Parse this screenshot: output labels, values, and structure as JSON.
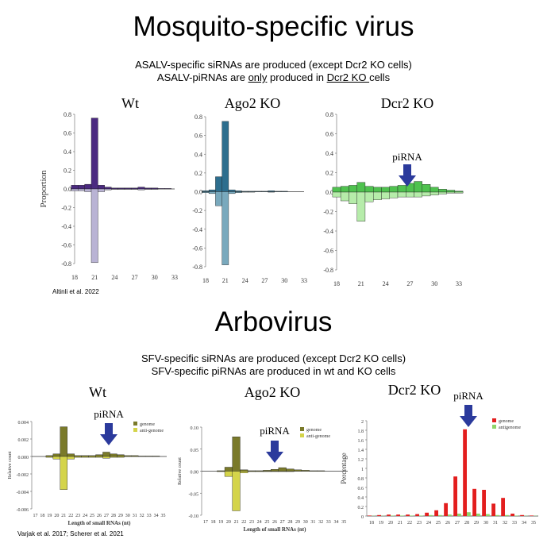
{
  "sections": {
    "top": {
      "title": "Mosquito-specific virus",
      "subtitle_line1": "ASALV-specific siRNAs are produced (except Dcr2 KO cells)",
      "subtitle_line2_pre": "ASALV-piRNAs are ",
      "subtitle_line2_u1": "only",
      "subtitle_line2_mid": " produced in ",
      "subtitle_line2_u2": "Dcr2 KO ",
      "subtitle_line2_post": "cells",
      "citation": "Altinli et al. 2022"
    },
    "bottom": {
      "title": "Arbovirus",
      "subtitle_line1": "SFV-specific siRNAs are produced (except Dcr2 KO cells)",
      "subtitle_line2": "SFV-specific piRNAs are produced in wt and KO cells",
      "citation": "Varjak et al. 2017; Scherer et al. 2021"
    }
  },
  "colors": {
    "wt_top_dark": "#4b2a80",
    "wt_top_light": "#b9b3d4",
    "ago2_top_dark": "#2d6e8e",
    "ago2_top_light": "#79a9bd",
    "dcr2_top_dark": "#4fc24f",
    "dcr2_top_light": "#b6ecaa",
    "arb_genome": "#7a7a2a",
    "arb_antigenome": "#d4d44a",
    "dcr2_genome": "#e31e1e",
    "dcr2_antigenome": "#8ed46a",
    "arrow": "#2b3a9c"
  },
  "chart_data": [
    {
      "id": "wt_top",
      "type": "bar",
      "title": "Wt",
      "ylabel": "Proportion",
      "xlabel": "",
      "ylim": [
        -0.8,
        0.8
      ],
      "yticks": [
        "0.8",
        "0.6",
        "0.4",
        "0.2",
        "0.0",
        "-0.2",
        "-0.4",
        "-0.6",
        "-0.8"
      ],
      "xticks": [
        "18",
        "21",
        "24",
        "27",
        "30",
        "33"
      ],
      "x": [
        18,
        19,
        20,
        21,
        22,
        23,
        24,
        25,
        26,
        27,
        28,
        29,
        30,
        31,
        32,
        33
      ],
      "series": [
        {
          "values": [
            0.04,
            0.04,
            0.05,
            0.76,
            0.04,
            0.02,
            0.01,
            0.01,
            0.01,
            0.01,
            0.02,
            0.01,
            0.01,
            0.005,
            0.005,
            0.0
          ]
        },
        {
          "values": [
            -0.02,
            -0.02,
            -0.03,
            -0.79,
            -0.03,
            -0.01,
            -0.005,
            -0.005,
            -0.005,
            -0.005,
            -0.01,
            -0.005,
            -0.005,
            0,
            0,
            0
          ]
        }
      ]
    },
    {
      "id": "ago2_top",
      "type": "bar",
      "title": "Ago2 KO",
      "ylabel": "",
      "xlabel": "",
      "ylim": [
        -0.8,
        0.8
      ],
      "yticks": [
        "0.8",
        "0.6",
        "0.4",
        "0.2",
        "0.0",
        "-0.2",
        "-0.4",
        "-0.6",
        "-0.8"
      ],
      "xticks": [
        "18",
        "21",
        "24",
        "27",
        "30",
        "33"
      ],
      "x": [
        18,
        19,
        20,
        21,
        22,
        23,
        24,
        25,
        26,
        27,
        28,
        29,
        30,
        31,
        32,
        33
      ],
      "series": [
        {
          "values": [
            0.01,
            0.02,
            0.16,
            0.75,
            0.02,
            0.01,
            0.005,
            0.005,
            0.005,
            0.005,
            0.01,
            0.005,
            0.005,
            0,
            0,
            0
          ]
        },
        {
          "values": [
            -0.01,
            -0.02,
            -0.15,
            -0.78,
            -0.02,
            -0.01,
            -0.005,
            -0.005,
            0,
            0,
            -0.005,
            0,
            0,
            0,
            0,
            0
          ]
        }
      ]
    },
    {
      "id": "dcr2_top",
      "type": "bar",
      "title": "Dcr2 KO",
      "ylabel": "",
      "xlabel": "",
      "annotation": "piRNA",
      "ylim": [
        -0.8,
        0.8
      ],
      "yticks": [
        "0.8",
        "0.6",
        "0.4",
        "0.2",
        "0.0",
        "-0.2",
        "-0.4",
        "-0.6",
        "-0.8"
      ],
      "xticks": [
        "18",
        "21",
        "24",
        "27",
        "30",
        "33"
      ],
      "x": [
        18,
        19,
        20,
        21,
        22,
        23,
        24,
        25,
        26,
        27,
        28,
        29,
        30,
        31,
        32,
        33
      ],
      "series": [
        {
          "values": [
            0.05,
            0.06,
            0.07,
            0.1,
            0.06,
            0.05,
            0.05,
            0.06,
            0.07,
            0.09,
            0.11,
            0.08,
            0.05,
            0.03,
            0.02,
            0.01
          ]
        },
        {
          "values": [
            -0.05,
            -0.09,
            -0.12,
            -0.3,
            -0.1,
            -0.08,
            -0.07,
            -0.06,
            -0.05,
            -0.05,
            -0.05,
            -0.04,
            -0.03,
            -0.02,
            -0.01,
            -0.01
          ]
        }
      ]
    },
    {
      "id": "wt_bottom",
      "type": "bar",
      "title": "Wt",
      "ylabel": "Relative count",
      "xlabel": "Length of small RNAs (nt)",
      "annotation": "piRNA",
      "legend": [
        "genome",
        "anti-genome"
      ],
      "ylim": [
        -0.006,
        0.004
      ],
      "yticks": [
        "0.004",
        "0.002",
        "0.000",
        "-0.002",
        "-0.004",
        "-0.006"
      ],
      "xticks": [
        "17",
        "18",
        "19",
        "20",
        "21",
        "22",
        "23",
        "24",
        "25",
        "26",
        "27",
        "28",
        "29",
        "30",
        "31",
        "32",
        "33",
        "34",
        "35"
      ],
      "x": [
        17,
        18,
        19,
        20,
        21,
        22,
        23,
        24,
        25,
        26,
        27,
        28,
        29,
        30,
        31,
        32,
        33,
        34,
        35
      ],
      "series": [
        {
          "name": "genome",
          "values": [
            0,
            0,
            0.0001,
            0.0003,
            0.0034,
            0.0003,
            0.0001,
            0.0001,
            0.0001,
            0.0002,
            0.0005,
            0.0003,
            0.0002,
            0.0001,
            0.0001,
            5e-05,
            5e-05,
            5e-05,
            0
          ]
        },
        {
          "name": "anti-genome",
          "values": [
            0,
            0,
            -0.0001,
            -0.0003,
            -0.0038,
            -0.0003,
            -0.0001,
            -0.0001,
            -0.0001,
            -0.0001,
            -0.0002,
            -0.0001,
            -0.0001,
            0,
            0,
            0,
            0,
            0,
            0
          ]
        }
      ]
    },
    {
      "id": "ago2_bottom",
      "type": "bar",
      "title": "Ago2 KO",
      "ylabel": "Relative count",
      "xlabel": "Length of small RNAs (nt)",
      "annotation": "piRNA",
      "legend": [
        "genome",
        "anti-genome"
      ],
      "ylim": [
        -0.1,
        0.1
      ],
      "yticks": [
        "0.10",
        "0.05",
        "0.00",
        "-0.05",
        "-0.10"
      ],
      "xticks": [
        "17",
        "18",
        "19",
        "20",
        "21",
        "22",
        "23",
        "24",
        "25",
        "26",
        "27",
        "28",
        "29",
        "30",
        "31",
        "32",
        "33",
        "34",
        "35"
      ],
      "x": [
        17,
        18,
        19,
        20,
        21,
        22,
        23,
        24,
        25,
        26,
        27,
        28,
        29,
        30,
        31,
        32,
        33,
        34,
        35
      ],
      "series": [
        {
          "name": "genome",
          "values": [
            0,
            0,
            0.001,
            0.009,
            0.078,
            0.003,
            0.001,
            0.001,
            0.002,
            0.004,
            0.008,
            0.005,
            0.003,
            0.002,
            0.001,
            0.001,
            0,
            0,
            0
          ]
        },
        {
          "name": "anti-genome",
          "values": [
            0,
            0,
            -0.001,
            -0.012,
            -0.09,
            -0.004,
            -0.001,
            -0.001,
            -0.001,
            -0.001,
            -0.001,
            -0.001,
            0,
            0,
            0,
            0,
            0,
            0,
            0
          ]
        }
      ]
    },
    {
      "id": "dcr2_bottom",
      "type": "bar",
      "title": "Dcr2 KO",
      "ylabel": "Percentage",
      "xlabel": "",
      "annotation": "piRNA",
      "legend": [
        "genome",
        "antigenome"
      ],
      "ylim": [
        0,
        2
      ],
      "yticks": [
        "2",
        "1.8",
        "1.6",
        "1.4",
        "1.2",
        "1",
        "0.8",
        "0.6",
        "0.4",
        "0.2",
        "0"
      ],
      "xticks": [
        "18",
        "19",
        "20",
        "21",
        "22",
        "23",
        "24",
        "25",
        "26",
        "27",
        "28",
        "29",
        "30",
        "31",
        "32",
        "33",
        "34",
        "35"
      ],
      "x": [
        18,
        19,
        20,
        21,
        22,
        23,
        24,
        25,
        26,
        27,
        28,
        29,
        30,
        31,
        32,
        33,
        34,
        35
      ],
      "series": [
        {
          "name": "genome",
          "values": [
            0.01,
            0.02,
            0.03,
            0.03,
            0.03,
            0.04,
            0.07,
            0.12,
            0.27,
            0.83,
            1.82,
            0.57,
            0.55,
            0.26,
            0.38,
            0.05,
            0.02,
            0.01
          ]
        },
        {
          "name": "antigenome",
          "values": [
            0.005,
            0.005,
            0.01,
            0.01,
            0.01,
            0.01,
            0.02,
            0.02,
            0.03,
            0.05,
            0.08,
            0.05,
            0.04,
            0.02,
            0.02,
            0.01,
            0.005,
            0.005
          ]
        }
      ]
    }
  ]
}
